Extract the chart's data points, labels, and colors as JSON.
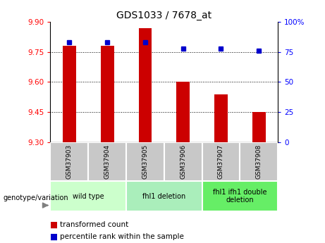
{
  "title": "GDS1033 / 7678_at",
  "samples": [
    "GSM37903",
    "GSM37904",
    "GSM37905",
    "GSM37906",
    "GSM37907",
    "GSM37908"
  ],
  "red_values": [
    9.78,
    9.78,
    9.87,
    9.6,
    9.54,
    9.45
  ],
  "blue_values": [
    83,
    83,
    83,
    78,
    78,
    76
  ],
  "ylim_left": [
    9.3,
    9.9
  ],
  "ylim_right": [
    0,
    100
  ],
  "yticks_left": [
    9.3,
    9.45,
    9.6,
    9.75,
    9.9
  ],
  "yticks_right": [
    0,
    25,
    50,
    75,
    100
  ],
  "ytick_labels_right": [
    "0",
    "25",
    "50",
    "75",
    "100%"
  ],
  "hlines": [
    9.75,
    9.6,
    9.45
  ],
  "bar_color": "#cc0000",
  "dot_color": "#0000cc",
  "baseline": 9.3,
  "legend_red_label": "transformed count",
  "legend_blue_label": "percentile rank within the sample",
  "genotype_label": "genotype/variation",
  "group_info": [
    {
      "start": 0,
      "end": 1,
      "label": "wild type",
      "color": "#ccffcc"
    },
    {
      "start": 2,
      "end": 3,
      "label": "fhl1 deletion",
      "color": "#aaeebb"
    },
    {
      "start": 4,
      "end": 5,
      "label": "fhl1 ifh1 double\ndeletion",
      "color": "#66ee66"
    }
  ],
  "sample_box_color": "#c8c8c8"
}
